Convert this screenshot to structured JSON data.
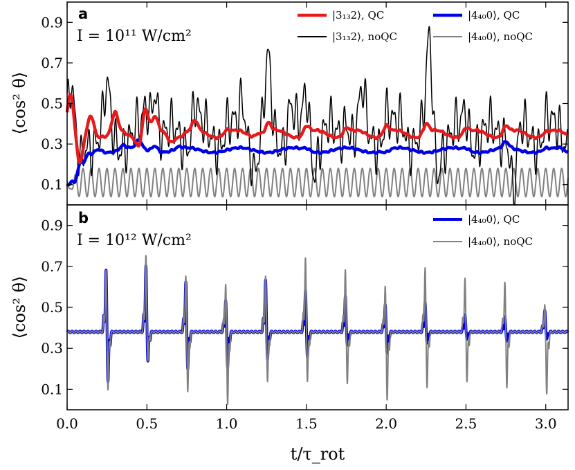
{
  "chart_data": [
    {
      "type": "line",
      "panel_label": "a",
      "annotation": "I = 10¹¹ W/cm²",
      "ylabel": "⟨cos² θ⟩",
      "xlabel": "",
      "xlim": [
        0,
        3.14
      ],
      "ylim": [
        0,
        1.0
      ],
      "yticks": [
        0.1,
        0.3,
        0.5,
        0.7,
        0.9
      ],
      "legend": "top-right, 2 columns",
      "series": [
        {
          "name": "|3₁₃2⟩, QC",
          "color": "#e41a1c",
          "width": 4.5,
          "baseline": 0.35,
          "wobble_amp": 0.018,
          "wobble_freq": 4,
          "jitter": 0.003,
          "peaks": [
            [
              0.02,
              0.54
            ],
            [
              0.08,
              0.19
            ],
            [
              0.15,
              0.45
            ],
            [
              0.25,
              0.34
            ],
            [
              0.3,
              0.44
            ],
            [
              0.45,
              0.3
            ],
            [
              0.49,
              0.48
            ],
            [
              0.55,
              0.42
            ],
            [
              0.65,
              0.32
            ],
            [
              0.75,
              0.36
            ],
            [
              0.8,
              0.4
            ],
            [
              1.0,
              0.37
            ],
            [
              1.2,
              0.37
            ],
            [
              1.26,
              0.4
            ],
            [
              1.5,
              0.39
            ],
            [
              1.75,
              0.38
            ],
            [
              2.0,
              0.39
            ],
            [
              2.25,
              0.4
            ],
            [
              2.5,
              0.38
            ],
            [
              2.75,
              0.39
            ],
            [
              3.0,
              0.36
            ]
          ]
        },
        {
          "name": "|3₁₃2⟩, noQC",
          "color": "#000000",
          "width": 1.5,
          "baseline": 0.34,
          "wobble_amp": 0.07,
          "wobble_freq": 5,
          "jitter": 0.08,
          "peaks": [
            [
              0.02,
              0.55
            ],
            [
              0.08,
              0.18
            ],
            [
              0.25,
              0.53
            ],
            [
              0.3,
              0.31
            ],
            [
              0.5,
              0.47
            ],
            [
              0.55,
              0.62
            ],
            [
              0.63,
              0.32
            ],
            [
              0.75,
              0.34
            ],
            [
              0.8,
              0.5
            ],
            [
              1.0,
              0.4
            ],
            [
              1.1,
              0.51
            ],
            [
              1.18,
              0.2
            ],
            [
              1.26,
              0.67
            ],
            [
              1.4,
              0.49
            ],
            [
              1.5,
              0.55
            ],
            [
              1.55,
              0.22
            ],
            [
              1.75,
              0.47
            ],
            [
              1.85,
              0.52
            ],
            [
              2.0,
              0.45
            ],
            [
              2.1,
              0.42
            ],
            [
              2.27,
              0.77
            ],
            [
              2.32,
              0.2
            ],
            [
              2.5,
              0.45
            ],
            [
              2.75,
              0.4
            ],
            [
              2.8,
              0.08
            ],
            [
              3.0,
              0.43
            ]
          ]
        },
        {
          "name": "|4₄₀0⟩, QC",
          "color": "#0000e6",
          "width": 4.5,
          "baseline": 0.27,
          "wobble_amp": 0.012,
          "wobble_freq": 3,
          "jitter": 0.003,
          "peaks": [
            [
              0.0,
              0.13
            ],
            [
              0.02,
              0.22
            ],
            [
              0.05,
              0.12
            ],
            [
              0.1,
              0.2
            ],
            [
              0.15,
              0.25
            ],
            [
              0.2,
              0.28
            ],
            [
              0.35,
              0.29
            ],
            [
              0.45,
              0.31
            ],
            [
              0.55,
              0.3
            ],
            [
              0.7,
              0.28
            ],
            [
              1.0,
              0.27
            ],
            [
              1.5,
              0.28
            ],
            [
              2.0,
              0.26
            ],
            [
              2.5,
              0.28
            ],
            [
              2.75,
              0.3
            ],
            [
              3.0,
              0.28
            ],
            [
              3.14,
              0.25
            ]
          ]
        },
        {
          "name": "|4₄₀0⟩, noQC",
          "color": "#808080",
          "width": 2,
          "baseline": 0.11,
          "osc_amp": 0.07,
          "osc_freq": 20,
          "dip_at": 0.02,
          "dip_value": 0.08
        }
      ]
    },
    {
      "type": "line",
      "panel_label": "b",
      "annotation": "I = 10¹² W/cm²",
      "ylabel": "⟨cos² θ⟩",
      "xlabel": "t/τ_rot",
      "xlim": [
        0,
        3.14
      ],
      "ylim": [
        0,
        1.0
      ],
      "yticks": [
        0.1,
        0.3,
        0.5,
        0.7,
        0.9
      ],
      "xticks": [
        0.0,
        0.5,
        1.0,
        1.5,
        2.0,
        2.5,
        3.0
      ],
      "xticklabels": [
        "0.0",
        "0.5",
        "1.0",
        "1.5",
        "2.0",
        "2.5",
        "3.0"
      ],
      "legend": "top-right",
      "baseline": 0.38,
      "revivals_x": [
        0.25,
        0.5,
        0.75,
        1.0,
        1.25,
        1.5,
        1.75,
        2.0,
        2.25,
        2.5,
        2.75,
        3.0
      ],
      "series": [
        {
          "name": "|4₄₀0⟩, QC",
          "color": "#0000e6",
          "width": 4,
          "revival_max": [
            0.69,
            0.71,
            0.63,
            0.54,
            0.64,
            0.59,
            0.56,
            0.52,
            0.53,
            0.47,
            0.46,
            0.49
          ],
          "revival_min": [
            0.13,
            0.23,
            0.19,
            0.2,
            0.24,
            0.25,
            0.31,
            0.27,
            0.32,
            0.34,
            0.33,
            0.34
          ]
        },
        {
          "name": "|4₄₀0⟩, noQC",
          "color": "#808080",
          "width": 2,
          "revival_max": [
            0.69,
            0.76,
            0.66,
            0.62,
            0.66,
            0.75,
            0.69,
            0.61,
            0.7,
            0.65,
            0.63,
            0.52
          ],
          "revival_min": [
            0.09,
            0.23,
            0.08,
            0.02,
            0.13,
            0.13,
            0.12,
            0.04,
            0.1,
            0.13,
            0.1,
            0.07
          ]
        }
      ]
    }
  ]
}
